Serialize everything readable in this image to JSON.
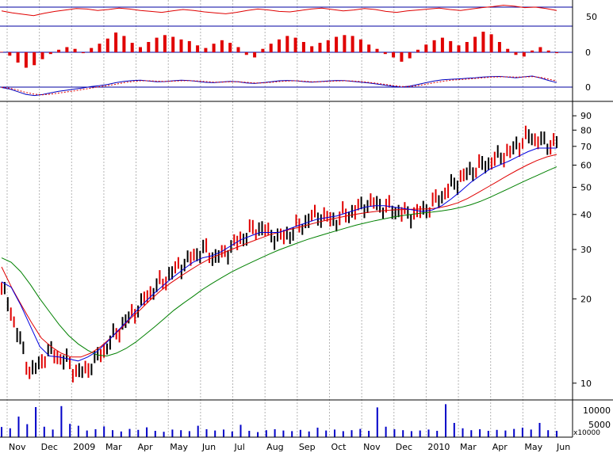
{
  "chart_data": [
    {
      "panel": "rsi",
      "type": "line",
      "y_ticks": [
        "50"
      ],
      "reference_lines": [
        70,
        30
      ],
      "colors": {
        "line": "#e00000",
        "reference": "#0000a0"
      },
      "series": [
        {
          "values": [
            62,
            58,
            55,
            52,
            57,
            61,
            64,
            67,
            66,
            63,
            65,
            68,
            66,
            63,
            61,
            59,
            62,
            65,
            63,
            60,
            58,
            56,
            59,
            63,
            66,
            64,
            61,
            60,
            63,
            66,
            68,
            65,
            62,
            64,
            67,
            65,
            61,
            59,
            62,
            64,
            66,
            68,
            65,
            63,
            66,
            69,
            71,
            74,
            72,
            69,
            70,
            67,
            63
          ]
        }
      ]
    },
    {
      "panel": "macd_histogram",
      "type": "bar",
      "y_ticks": [
        "0"
      ],
      "colors": {
        "bars": "#e00000",
        "zero_line": "#0000a0"
      },
      "values": [
        0.05,
        -0.4,
        -1.2,
        -1.8,
        -1.5,
        -0.8,
        -0.2,
        0.3,
        0.6,
        0.4,
        -0.1,
        0.5,
        1.0,
        1.6,
        2.3,
        1.9,
        1.1,
        0.6,
        1.2,
        1.7,
        2.0,
        1.8,
        1.5,
        1.3,
        0.8,
        0.5,
        1.0,
        1.4,
        1.1,
        0.6,
        -0.3,
        -0.6,
        0.4,
        1.0,
        1.5,
        1.9,
        1.7,
        1.2,
        0.7,
        1.1,
        1.4,
        1.8,
        2.0,
        1.9,
        1.5,
        0.9,
        0.4,
        -0.2,
        -0.6,
        -1.1,
        -0.7,
        0.3,
        0.9,
        1.4,
        1.7,
        1.3,
        0.8,
        1.2,
        1.8,
        2.4,
        2.1,
        1.2,
        0.4,
        -0.3,
        -0.5,
        0.2,
        0.6,
        0.2,
        -0.1
      ]
    },
    {
      "panel": "macd",
      "type": "line",
      "y_ticks": [
        "0"
      ],
      "colors": {
        "macd": "#0000c0",
        "signal": "#e00000",
        "zero_line": "#0000a0"
      },
      "series": [
        {
          "values": [
            -0.2,
            -1.0,
            -2.4,
            -3.8,
            -4.4,
            -3.9,
            -3.0,
            -2.2,
            -1.6,
            -1.0,
            -0.4,
            0.3,
            0.8,
            1.4,
            2.3,
            3.0,
            3.4,
            3.6,
            3.2,
            2.8,
            2.9,
            3.3,
            3.6,
            3.4,
            3.0,
            2.5,
            2.3,
            2.7,
            3.0,
            2.8,
            2.2,
            1.9,
            2.3,
            2.8,
            3.3,
            3.5,
            3.3,
            2.9,
            2.6,
            2.9,
            3.2,
            3.5,
            3.4,
            3.0,
            2.6,
            2.2,
            1.6,
            1.0,
            0.4,
            0.0,
            0.5,
            1.4,
            2.3,
            3.2,
            3.8,
            4.1,
            4.3,
            4.6,
            4.9,
            5.3,
            5.5,
            5.6,
            5.3,
            4.9,
            5.4,
            5.8,
            4.8,
            3.5,
            2.4
          ]
        },
        {
          "values": [
            -0.1,
            -0.6,
            -1.6,
            -2.8,
            -3.7,
            -4.0,
            -3.7,
            -3.1,
            -2.5,
            -1.9,
            -1.2,
            -0.5,
            0.2,
            0.8,
            1.5,
            2.3,
            2.9,
            3.3,
            3.3,
            3.1,
            3.0,
            3.1,
            3.3,
            3.4,
            3.2,
            2.9,
            2.6,
            2.6,
            2.8,
            2.8,
            2.5,
            2.2,
            2.2,
            2.5,
            2.9,
            3.2,
            3.3,
            3.1,
            2.8,
            2.8,
            3.0,
            3.2,
            3.3,
            3.2,
            2.9,
            2.5,
            2.0,
            1.4,
            0.8,
            0.3,
            0.3,
            0.8,
            1.5,
            2.3,
            3.0,
            3.6,
            3.9,
            4.2,
            4.5,
            4.9,
            5.2,
            5.4,
            5.4,
            5.2,
            5.3,
            5.5,
            5.1,
            4.2,
            3.2
          ]
        }
      ]
    },
    {
      "panel": "price",
      "type": "line",
      "scale": "log",
      "ylim": [
        9,
        100
      ],
      "y_ticks": [
        10,
        20,
        30,
        40,
        50,
        60,
        70,
        80,
        90
      ],
      "x_tick_labels": [
        "Nov",
        "Dec",
        "2009",
        "Mar",
        "Apr",
        "May",
        "Jun",
        "Jul",
        "Aug",
        "Sep",
        "Oct",
        "Nov",
        "Dec",
        "2010",
        "Mar",
        "Apr",
        "May",
        "Jun"
      ],
      "colors": {
        "price": "#000000",
        "ma_short": "#0000e0",
        "ma_mid": "#e00000",
        "ma_long": "#008000",
        "grid": "#b4b4b4"
      },
      "series": [
        {
          "values": [
            22,
            18,
            14,
            11,
            11.5,
            13,
            12.5,
            12,
            11,
            11,
            12,
            13,
            14.5,
            16,
            17.5,
            19,
            21,
            22.5,
            24,
            26,
            27,
            29,
            30,
            28,
            29,
            31,
            33,
            35,
            36,
            34,
            33,
            34,
            36,
            38,
            40,
            39,
            38,
            40,
            41,
            43,
            44,
            43,
            42,
            41,
            40,
            40.5,
            42,
            45,
            48,
            52,
            55,
            58,
            60,
            62,
            65,
            67,
            72,
            76,
            74,
            71,
            73
          ]
        },
        {
          "values": [
            23,
            22,
            19,
            16,
            13.5,
            12.5,
            12.4,
            12.2,
            12,
            12.4,
            13,
            14,
            15.2,
            16.5,
            18,
            19.5,
            21,
            22.5,
            24,
            25.5,
            27,
            28,
            28.5,
            29.5,
            31,
            32.5,
            33.5,
            34.5,
            34.5,
            34.5,
            35.5,
            36.5,
            37.5,
            38.5,
            39,
            39.5,
            40.5,
            41.5,
            42.5,
            43,
            43,
            42.5,
            42,
            41.5,
            41,
            41.5,
            43,
            45.5,
            48.5,
            52,
            55,
            58,
            60,
            62,
            64.5,
            67,
            69,
            69,
            69
          ]
        },
        {
          "values": [
            26,
            22,
            19,
            16.5,
            14.5,
            13.5,
            12.8,
            12.4,
            12.4,
            12.8,
            13.5,
            14.5,
            15.6,
            17,
            18.3,
            19.8,
            21.3,
            22.7,
            24,
            25.3,
            26.6,
            27.8,
            28.8,
            29.8,
            30.8,
            31.8,
            32.8,
            33.8,
            34.6,
            35.3,
            36,
            36.8,
            37.6,
            38.3,
            39,
            39.6,
            40.2,
            40.7,
            41.1,
            41.4,
            41.6,
            41.7,
            41.8,
            41.9,
            42.2,
            42.9,
            44,
            45.6,
            47.7,
            50,
            52.4,
            55,
            57.5,
            60,
            62.3,
            64.2,
            65.5
          ]
        },
        {
          "values": [
            28,
            27,
            25,
            22.5,
            20,
            18,
            16.2,
            14.8,
            13.8,
            13.1,
            12.6,
            12.5,
            12.8,
            13.3,
            14,
            14.9,
            15.9,
            17,
            18.2,
            19.3,
            20.4,
            21.6,
            22.7,
            23.8,
            24.9,
            25.9,
            26.9,
            27.9,
            28.9,
            29.9,
            30.8,
            31.7,
            32.6,
            33.4,
            34.2,
            35,
            35.8,
            36.6,
            37.3,
            38,
            38.6,
            39.2,
            39.7,
            40.1,
            40.5,
            40.8,
            41.2,
            41.7,
            42.4,
            43.3,
            44.5,
            46,
            47.7,
            49.5,
            51.4,
            53.3,
            55.2,
            57.2,
            59.2
          ]
        }
      ]
    },
    {
      "panel": "volume",
      "type": "bar",
      "y_ticks": [
        "10000",
        "5000"
      ],
      "multiplier_label": "x10000",
      "colors": {
        "bars": "#0000c8"
      },
      "values": [
        3200,
        2800,
        6500,
        4100,
        9500,
        3300,
        2400,
        9800,
        4200,
        3600,
        2100,
        2500,
        3400,
        2200,
        1800,
        2600,
        2300,
        3100,
        2000,
        1700,
        2400,
        2200,
        1900,
        3600,
        2500,
        2100,
        2400,
        1800,
        3900,
        2000,
        1600,
        2200,
        2500,
        2100,
        1900,
        2300,
        1800,
        3000,
        2100,
        2400,
        1900,
        2200,
        2600,
        2000,
        9400,
        3300,
        2500,
        2200,
        1900,
        2100,
        2400,
        2000,
        10400,
        4500,
        2800,
        2200,
        2500,
        2000,
        2300,
        2100,
        2600,
        3000,
        2400,
        4500,
        2200,
        2000
      ]
    }
  ]
}
